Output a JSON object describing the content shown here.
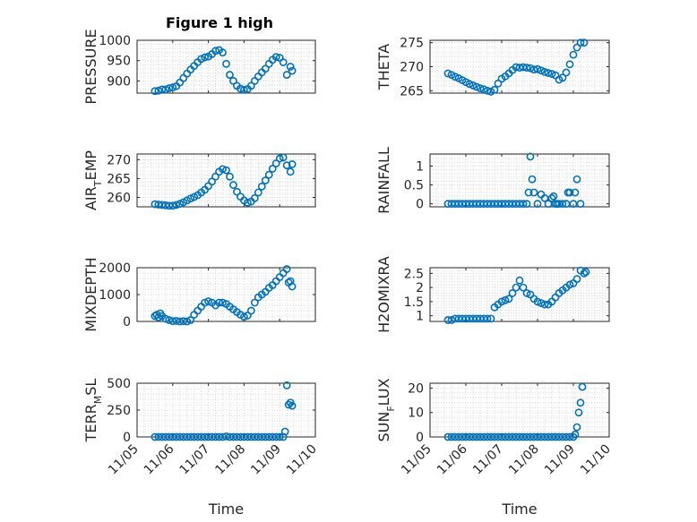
{
  "figure": {
    "title": "Figure 1 high",
    "marker_color": "#0072BD",
    "axis_color": "#262626",
    "grid_color": "#d4d4d4"
  },
  "chart_data": [
    {
      "type": "scatter",
      "ylabel": "PRESSURE",
      "xlabel": "",
      "title": "Figure 1 high",
      "xlim": [
        5.0,
        10.0
      ],
      "ylim": [
        870,
        1000
      ],
      "yticks": [
        900,
        950,
        1000
      ],
      "show_xticks": false,
      "grid": true,
      "x": [
        5.5,
        5.6,
        5.7,
        5.8,
        5.9,
        6.0,
        6.1,
        6.2,
        6.3,
        6.4,
        6.5,
        6.6,
        6.7,
        6.8,
        6.9,
        7.0,
        7.1,
        7.2,
        7.3,
        7.4,
        7.5,
        7.6,
        7.7,
        7.8,
        7.9,
        8.0,
        8.1,
        8.2,
        8.3,
        8.4,
        8.5,
        8.6,
        8.7,
        8.8,
        8.9,
        9.0,
        9.1,
        9.2,
        9.3,
        9.35
      ],
      "y": [
        875,
        876,
        879,
        879,
        882,
        884,
        887,
        896,
        907,
        918,
        928,
        937,
        946,
        954,
        958,
        960,
        966,
        974,
        976,
        970,
        942,
        915,
        900,
        888,
        881,
        878,
        880,
        888,
        900,
        911,
        921,
        930,
        942,
        952,
        959,
        957,
        946,
        915,
        935,
        925
      ]
    },
    {
      "type": "scatter",
      "ylabel": "THETA",
      "xlabel": "",
      "xlim": [
        5.0,
        10.0
      ],
      "ylim": [
        264.5,
        275.5
      ],
      "yticks": [
        265,
        270,
        275
      ],
      "show_xticks": false,
      "grid": true,
      "x": [
        5.5,
        5.6,
        5.7,
        5.8,
        5.9,
        6.0,
        6.1,
        6.2,
        6.3,
        6.4,
        6.5,
        6.6,
        6.7,
        6.8,
        6.9,
        7.0,
        7.1,
        7.2,
        7.3,
        7.4,
        7.5,
        7.6,
        7.7,
        7.8,
        7.9,
        8.0,
        8.1,
        8.2,
        8.3,
        8.4,
        8.5,
        8.6,
        8.7,
        8.8,
        8.9,
        9.0,
        9.1,
        9.2,
        9.3
      ],
      "y": [
        268.6,
        268.3,
        267.9,
        267.6,
        267.2,
        266.8,
        266.4,
        266.1,
        265.8,
        265.5,
        265.3,
        265.0,
        264.8,
        265.2,
        266.5,
        267.5,
        268.0,
        268.6,
        269.3,
        269.9,
        269.8,
        269.9,
        269.8,
        269.7,
        269.4,
        269.5,
        269.2,
        268.9,
        268.7,
        268.5,
        268.2,
        267.3,
        267.7,
        268.8,
        270.5,
        272.5,
        274.0,
        275.0,
        275.0
      ]
    },
    {
      "type": "scatter",
      "ylabel": "AIR_TEMP",
      "ylabel_main": "AIR",
      "ylabel_sub": "T",
      "ylabel_rest": "EMP",
      "xlabel": "",
      "xlim": [
        5.0,
        10.0
      ],
      "ylim": [
        257.5,
        271.5
      ],
      "yticks": [
        260,
        265,
        270
      ],
      "show_xticks": false,
      "grid": true,
      "x": [
        5.5,
        5.6,
        5.7,
        5.8,
        5.9,
        6.0,
        6.1,
        6.2,
        6.3,
        6.4,
        6.5,
        6.6,
        6.7,
        6.8,
        6.9,
        7.0,
        7.1,
        7.2,
        7.3,
        7.4,
        7.5,
        7.6,
        7.7,
        7.8,
        7.9,
        8.0,
        8.1,
        8.2,
        8.3,
        8.4,
        8.5,
        8.6,
        8.7,
        8.8,
        8.9,
        9.0,
        9.1,
        9.2,
        9.3,
        9.35
      ],
      "y": [
        258.2,
        258.1,
        258.0,
        257.9,
        257.8,
        257.8,
        258.0,
        258.3,
        258.7,
        259.2,
        259.7,
        260.1,
        260.6,
        261.3,
        262.0,
        263.0,
        264.2,
        265.5,
        266.8,
        267.5,
        267.2,
        265.5,
        263.3,
        261.5,
        260.2,
        259.2,
        258.6,
        258.9,
        259.8,
        261.3,
        262.9,
        264.5,
        266.0,
        267.6,
        269.0,
        270.3,
        270.6,
        268.5,
        266.8,
        268.8
      ]
    },
    {
      "type": "scatter",
      "ylabel": "RAINFALL",
      "xlabel": "",
      "xlim": [
        5.0,
        10.0
      ],
      "ylim": [
        -0.08,
        1.32
      ],
      "yticks": [
        0,
        0.5,
        1
      ],
      "ytick_labels": [
        "0",
        "0.5",
        "1"
      ],
      "show_xticks": false,
      "grid": true,
      "x": [
        5.5,
        5.6,
        5.7,
        5.8,
        5.9,
        6.0,
        6.1,
        6.2,
        6.3,
        6.4,
        6.5,
        6.6,
        6.7,
        6.8,
        6.9,
        7.0,
        7.1,
        7.2,
        7.3,
        7.4,
        7.5,
        7.6,
        7.7,
        7.75,
        7.8,
        7.85,
        7.9,
        8.0,
        8.1,
        8.2,
        8.3,
        8.4,
        8.45,
        8.5,
        8.55,
        8.6,
        8.7,
        8.8,
        8.85,
        8.9,
        9.0,
        9.05,
        9.1,
        9.2
      ],
      "y": [
        0,
        0,
        0,
        0,
        0,
        0,
        0,
        0,
        0,
        0,
        0,
        0,
        0,
        0,
        0,
        0,
        0,
        0,
        0,
        0,
        0,
        0,
        0,
        0.3,
        1.25,
        0.65,
        0.3,
        0,
        0.25,
        0.15,
        0,
        0.15,
        0.2,
        0,
        0,
        0,
        0,
        0,
        0.3,
        0.3,
        0,
        0.3,
        0.65,
        0
      ]
    },
    {
      "type": "scatter",
      "ylabel": "MIXDEPTH",
      "xlabel": "",
      "xlim": [
        5.0,
        10.0
      ],
      "ylim": [
        0,
        2000
      ],
      "yticks": [
        0,
        1000,
        2000
      ],
      "show_xticks": false,
      "grid": true,
      "x": [
        5.5,
        5.55,
        5.6,
        5.65,
        5.7,
        5.8,
        5.9,
        6.0,
        6.1,
        6.2,
        6.3,
        6.4,
        6.5,
        6.6,
        6.7,
        6.8,
        6.9,
        7.0,
        7.1,
        7.2,
        7.3,
        7.4,
        7.5,
        7.6,
        7.7,
        7.8,
        7.9,
        8.0,
        8.1,
        8.2,
        8.3,
        8.4,
        8.5,
        8.6,
        8.7,
        8.8,
        8.9,
        9.0,
        9.1,
        9.2,
        9.25,
        9.3,
        9.35
      ],
      "y": [
        200,
        250,
        150,
        300,
        200,
        100,
        50,
        10,
        20,
        0,
        10,
        0,
        50,
        250,
        400,
        550,
        700,
        750,
        700,
        600,
        700,
        700,
        650,
        550,
        450,
        350,
        250,
        170,
        220,
        400,
        700,
        900,
        1000,
        1100,
        1250,
        1350,
        1500,
        1650,
        1800,
        1950,
        1450,
        1500,
        1300
      ]
    },
    {
      "type": "scatter",
      "ylabel": "H2OMIXRA",
      "xlabel": "",
      "xlim": [
        5.0,
        10.0
      ],
      "ylim": [
        0.8,
        2.7
      ],
      "yticks": [
        1,
        1.5,
        2,
        2.5
      ],
      "ytick_labels": [
        "1",
        "1.5",
        "2",
        "2.5"
      ],
      "show_xticks": false,
      "grid": true,
      "x": [
        5.5,
        5.6,
        5.7,
        5.8,
        5.9,
        6.0,
        6.1,
        6.2,
        6.3,
        6.4,
        6.5,
        6.6,
        6.7,
        6.8,
        6.9,
        7.0,
        7.1,
        7.2,
        7.3,
        7.4,
        7.5,
        7.6,
        7.7,
        7.8,
        7.9,
        8.0,
        8.1,
        8.2,
        8.3,
        8.4,
        8.5,
        8.6,
        8.7,
        8.8,
        8.9,
        9.0,
        9.1,
        9.2,
        9.3,
        9.35
      ],
      "y": [
        0.85,
        0.85,
        0.9,
        0.9,
        0.9,
        0.9,
        0.9,
        0.9,
        0.9,
        0.9,
        0.9,
        0.9,
        0.9,
        1.3,
        1.4,
        1.5,
        1.55,
        1.6,
        1.8,
        2.0,
        2.25,
        2.0,
        1.8,
        1.75,
        1.6,
        1.5,
        1.45,
        1.4,
        1.4,
        1.5,
        1.65,
        1.8,
        1.9,
        2.0,
        2.1,
        2.15,
        2.3,
        2.6,
        2.5,
        2.55
      ]
    },
    {
      "type": "scatter",
      "ylabel": "TERR_MSL",
      "ylabel_main": "TERR",
      "ylabel_sub": "M",
      "ylabel_rest": "SL",
      "xlabel": "Time",
      "xlim": [
        5.0,
        10.0
      ],
      "ylim": [
        0,
        500
      ],
      "yticks": [
        0,
        250,
        500
      ],
      "xticks": [
        5,
        6,
        7,
        8,
        9,
        10
      ],
      "xtick_labels": [
        "11/05",
        "11/06",
        "11/07",
        "11/08",
        "11/09",
        "11/10"
      ],
      "grid": true,
      "x": [
        5.5,
        5.6,
        5.7,
        5.8,
        5.9,
        6.0,
        6.1,
        6.2,
        6.3,
        6.4,
        6.5,
        6.6,
        6.7,
        6.8,
        6.9,
        7.0,
        7.1,
        7.2,
        7.3,
        7.4,
        7.5,
        7.6,
        7.7,
        7.8,
        7.9,
        8.0,
        8.1,
        8.2,
        8.3,
        8.4,
        8.5,
        8.6,
        8.7,
        8.8,
        8.9,
        9.0,
        9.1,
        9.15,
        9.2,
        9.25,
        9.3,
        9.35
      ],
      "y": [
        0,
        0,
        0,
        0,
        0,
        0,
        0,
        0,
        0,
        0,
        0,
        0,
        0,
        0,
        0,
        0,
        0,
        0,
        0,
        0,
        5,
        0,
        0,
        0,
        0,
        0,
        0,
        0,
        0,
        0,
        0,
        0,
        0,
        0,
        0,
        0,
        0,
        50,
        480,
        300,
        320,
        290
      ]
    },
    {
      "type": "scatter",
      "ylabel": "SUN_FLUX",
      "ylabel_main": "SUN",
      "ylabel_sub": "F",
      "ylabel_rest": "LUX",
      "xlabel": "Time",
      "xlim": [
        5.0,
        10.0
      ],
      "ylim": [
        0,
        22
      ],
      "yticks": [
        0,
        10,
        20
      ],
      "xticks": [
        5,
        6,
        7,
        8,
        9,
        10
      ],
      "xtick_labels": [
        "11/05",
        "11/06",
        "11/07",
        "11/08",
        "11/09",
        "11/10"
      ],
      "grid": true,
      "x": [
        5.5,
        5.6,
        5.7,
        5.8,
        5.9,
        6.0,
        6.1,
        6.2,
        6.3,
        6.4,
        6.5,
        6.6,
        6.7,
        6.8,
        6.9,
        7.0,
        7.1,
        7.2,
        7.3,
        7.4,
        7.5,
        7.6,
        7.7,
        7.8,
        7.9,
        8.0,
        8.1,
        8.2,
        8.3,
        8.4,
        8.5,
        8.6,
        8.7,
        8.8,
        8.9,
        9.0,
        9.05,
        9.1,
        9.15,
        9.2,
        9.25
      ],
      "y": [
        0,
        0,
        0,
        0,
        0,
        0,
        0,
        0,
        0,
        0,
        0,
        0,
        0,
        0,
        0,
        0,
        0,
        0,
        0,
        0,
        0,
        0,
        0,
        0,
        0,
        0,
        0,
        0,
        0,
        0,
        0,
        0,
        0,
        0,
        0,
        0,
        1,
        4,
        10,
        14,
        20.5
      ]
    }
  ]
}
